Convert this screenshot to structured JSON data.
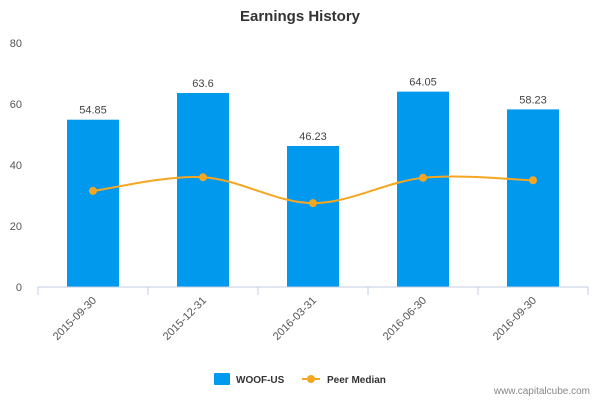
{
  "chart_data": {
    "type": "bar",
    "title": "Earnings History",
    "categories": [
      "2015-09-30",
      "2015-12-31",
      "2016-03-31",
      "2016-06-30",
      "2016-09-30"
    ],
    "series": [
      {
        "name": "WOOF-US",
        "kind": "bar",
        "color": "#0099ee",
        "values": [
          54.85,
          63.6,
          46.23,
          64.05,
          58.23
        ],
        "labels": [
          "54.85",
          "63.6",
          "46.23",
          "64.05",
          "58.23"
        ]
      },
      {
        "name": "Peer Median",
        "kind": "line",
        "color": "#f5a623",
        "values": [
          31.5,
          36,
          27.5,
          35.8,
          35
        ]
      }
    ],
    "ylim": [
      0,
      80
    ],
    "yticks": [
      0,
      20,
      40,
      60,
      80
    ],
    "xlabel": "",
    "ylabel": "",
    "grid": false,
    "legend": "bottom-center"
  },
  "footer": {
    "source": "www.capitalcube.com"
  }
}
